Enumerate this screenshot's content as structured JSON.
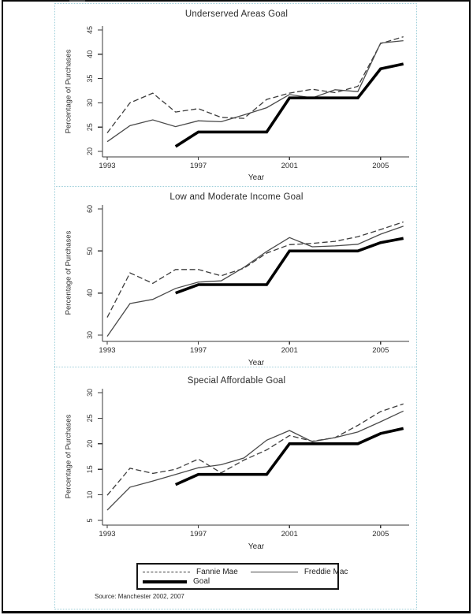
{
  "figure": {
    "source_note": "Source: Manchester 2002, 2007"
  },
  "legend": {
    "items": [
      {
        "label": "Fannie Mae",
        "style": "dashed"
      },
      {
        "label": "Freddie Mac",
        "style": "solid"
      },
      {
        "label": "Goal",
        "style": "thick"
      }
    ]
  },
  "chart_data": [
    {
      "type": "line",
      "title": "Underserved Areas Goal",
      "xlabel": "Year",
      "ylabel": "Percentage of Purchases",
      "ylim": [
        20,
        45
      ],
      "yticks": [
        20,
        25,
        30,
        35,
        40,
        45
      ],
      "xticks": [
        1993,
        1997,
        2001,
        2005
      ],
      "x": [
        1993,
        1994,
        1995,
        1996,
        1997,
        1998,
        1999,
        2000,
        2001,
        2002,
        2003,
        2004,
        2005,
        2006
      ],
      "series": [
        {
          "name": "Fannie Mae",
          "line": "dashed",
          "values": [
            23.8,
            30.0,
            32.0,
            28.1,
            28.8,
            27.0,
            26.8,
            30.7,
            32.0,
            32.8,
            32.1,
            33.4,
            42.2,
            43.6
          ]
        },
        {
          "name": "Freddie Mac",
          "line": "solid",
          "values": [
            22.0,
            25.3,
            26.5,
            25.1,
            26.3,
            26.1,
            27.5,
            29.0,
            31.7,
            31.0,
            32.7,
            32.3,
            42.3,
            42.8
          ]
        },
        {
          "name": "Goal",
          "line": "thick",
          "values": [
            null,
            null,
            null,
            21,
            24,
            24,
            24,
            24,
            31,
            31,
            31,
            31,
            37,
            38
          ]
        }
      ]
    },
    {
      "type": "line",
      "title": "Low and Moderate Income Goal",
      "xlabel": "Year",
      "ylabel": "Percentage of Purchases",
      "ylim": [
        30,
        60
      ],
      "yticks": [
        30,
        40,
        50,
        60
      ],
      "xticks": [
        1993,
        1997,
        2001,
        2005
      ],
      "x": [
        1993,
        1994,
        1995,
        1996,
        1997,
        1998,
        1999,
        2000,
        2001,
        2002,
        2003,
        2004,
        2005,
        2006
      ],
      "series": [
        {
          "name": "Fannie Mae",
          "line": "dashed",
          "values": [
            34.2,
            44.8,
            42.3,
            45.6,
            45.6,
            44.1,
            45.9,
            49.5,
            51.5,
            51.8,
            52.3,
            53.4,
            55.1,
            56.9
          ]
        },
        {
          "name": "Freddie Mac",
          "line": "solid",
          "values": [
            29.7,
            37.5,
            38.5,
            41.1,
            42.6,
            42.9,
            46.1,
            49.9,
            53.2,
            51.0,
            51.2,
            51.6,
            54.0,
            55.9
          ]
        },
        {
          "name": "Goal",
          "line": "thick",
          "values": [
            null,
            null,
            null,
            40,
            42,
            42,
            42,
            42,
            50,
            50,
            50,
            50,
            52,
            53
          ]
        }
      ]
    },
    {
      "type": "line",
      "title": "Special Affordable Goal",
      "xlabel": "Year",
      "ylabel": "Percentage of Purchases",
      "ylim": [
        5,
        30
      ],
      "yticks": [
        5,
        10,
        15,
        20,
        25,
        30
      ],
      "xticks": [
        1993,
        1997,
        2001,
        2005
      ],
      "x": [
        1993,
        1994,
        1995,
        1996,
        1997,
        1998,
        1999,
        2000,
        2001,
        2002,
        2003,
        2004,
        2005,
        2006
      ],
      "series": [
        {
          "name": "Fannie Mae",
          "line": "dashed",
          "values": [
            9.9,
            15.2,
            14.2,
            15.0,
            17.0,
            14.3,
            16.8,
            18.8,
            21.6,
            20.5,
            21.2,
            23.6,
            26.3,
            27.8
          ]
        },
        {
          "name": "Freddie Mac",
          "line": "solid",
          "values": [
            7.0,
            11.5,
            12.7,
            14.0,
            15.3,
            15.9,
            17.2,
            20.7,
            22.6,
            20.4,
            21.2,
            22.3,
            24.3,
            26.4
          ]
        },
        {
          "name": "Goal",
          "line": "thick",
          "values": [
            null,
            null,
            null,
            12,
            14,
            14,
            14,
            14,
            20,
            20,
            20,
            20,
            22,
            23
          ]
        }
      ]
    }
  ]
}
